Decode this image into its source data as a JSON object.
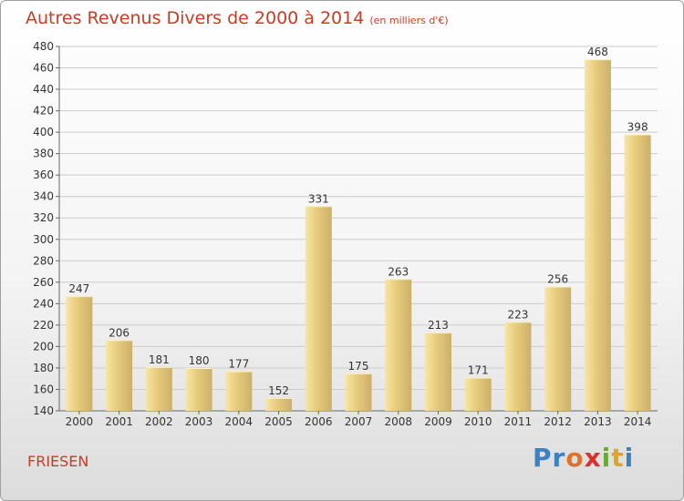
{
  "header": {
    "title": "Autres Revenus Divers de 2000 à 2014",
    "subtitle": "(en milliers d'€)"
  },
  "footer": {
    "commune": "FRIESEN",
    "logo_letters": [
      "P",
      "r",
      "o",
      "x",
      "i",
      "t",
      "i"
    ],
    "logo_colors": [
      "#3a82c4",
      "#3a82c4",
      "#e0732a",
      "#d93030",
      "#6aaa3a",
      "#e0a32a",
      "#3a82c4"
    ]
  },
  "colors": {
    "title": "#cc3a22",
    "bar": "#e8cd7e",
    "bar_light": "#f8e6a6",
    "bar_dark": "#cbb06a",
    "grid": "#cccccc"
  },
  "chart_data": {
    "type": "bar",
    "title": "Autres Revenus Divers de 2000 à 2014",
    "subtitle": "(en milliers d'€)",
    "categories": [
      "2000",
      "2001",
      "2002",
      "2003",
      "2004",
      "2005",
      "2006",
      "2007",
      "2008",
      "2009",
      "2010",
      "2011",
      "2012",
      "2013",
      "2014"
    ],
    "values": [
      247,
      206,
      181,
      180,
      177,
      152,
      331,
      175,
      263,
      213,
      171,
      223,
      256,
      468,
      398
    ],
    "ylim": [
      140,
      480
    ],
    "yticks": [
      140,
      160,
      180,
      200,
      220,
      240,
      260,
      280,
      300,
      320,
      340,
      360,
      380,
      400,
      420,
      440,
      460,
      480
    ],
    "grid": true,
    "xlabel": "",
    "ylabel": ""
  }
}
